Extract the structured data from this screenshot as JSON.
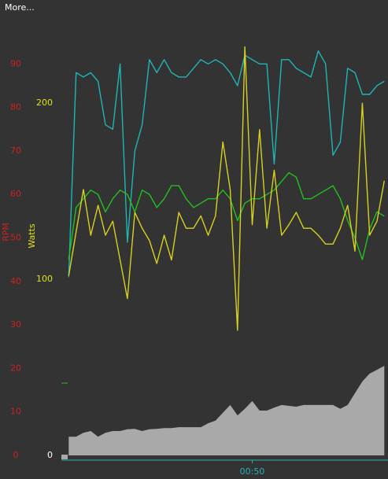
{
  "header": {
    "more": "More..."
  },
  "chart_data": {
    "type": "line",
    "y_label": "RPM",
    "y2_label": "Watts",
    "x": [
      0,
      2,
      4,
      6,
      8,
      10,
      12,
      14,
      16,
      18,
      20,
      22,
      24,
      26,
      28,
      30,
      32,
      34,
      36,
      38,
      40,
      42,
      44,
      46,
      48,
      50,
      52,
      54,
      56,
      58,
      60,
      62,
      64,
      66,
      68,
      70,
      72,
      74,
      76,
      78,
      80,
      82,
      84,
      86
    ],
    "xlim": [
      -2,
      87
    ],
    "xticks": [
      {
        "value": 50,
        "label": "00:50"
      }
    ],
    "ylim": [
      0,
      100
    ],
    "yticks": [
      0,
      10,
      20,
      30,
      40,
      50,
      60,
      70,
      80,
      90
    ],
    "y2lim": [
      0,
      247
    ],
    "y2ticks": [
      0,
      100,
      200
    ],
    "series": [
      {
        "color": "#a9a9a9",
        "fill": true,
        "values": [
          4.3,
          4.3,
          5.2,
          5.6,
          4.3,
          5.2,
          5.6,
          5.6,
          6.0,
          6.1,
          5.6,
          6.0,
          6.1,
          6.3,
          6.3,
          6.5,
          6.5,
          6.5,
          6.5,
          7.4,
          8.0,
          9.8,
          11.6,
          9.2,
          10.7,
          12.5,
          10.3,
          10.3,
          11.0,
          11.6,
          11.4,
          11.2,
          11.6,
          11.6,
          11.6,
          11.6,
          11.6,
          10.7,
          11.6,
          14.3,
          17.0,
          18.8,
          19.7,
          20.6
        ]
      },
      {
        "color": "#1fb5b5",
        "values": [
          41,
          88,
          87,
          88,
          86,
          76,
          75,
          90,
          49,
          70,
          76,
          91,
          88,
          91,
          88,
          87,
          87,
          89,
          91,
          90,
          91,
          90,
          88,
          85,
          92,
          91,
          90,
          90,
          67,
          91,
          91,
          89,
          88,
          87,
          93,
          90,
          69,
          72,
          89,
          88,
          83,
          83,
          85,
          86
        ]
      },
      {
        "color": "#22c022",
        "values": [
          45,
          57,
          59,
          61,
          60,
          56,
          59,
          61,
          60,
          56,
          61,
          60,
          57,
          59,
          62,
          62,
          59,
          57,
          58,
          59,
          59,
          61,
          59,
          54,
          58,
          59,
          59,
          60,
          61,
          63,
          65,
          64,
          59,
          59,
          60,
          61,
          62,
          59,
          54,
          50,
          45,
          52,
          56,
          55
        ]
      },
      {
        "color": "#d8d020",
        "axis": "y2",
        "values": [
          102,
          127,
          151,
          125,
          142,
          125,
          133,
          111,
          89,
          138,
          129,
          122,
          109,
          125,
          111,
          138,
          129,
          129,
          136,
          125,
          136,
          178,
          151,
          71,
          232,
          131,
          185,
          129,
          162,
          125,
          131,
          138,
          129,
          129,
          125,
          120,
          120,
          129,
          142,
          116,
          200,
          125,
          133,
          156
        ]
      }
    ]
  }
}
